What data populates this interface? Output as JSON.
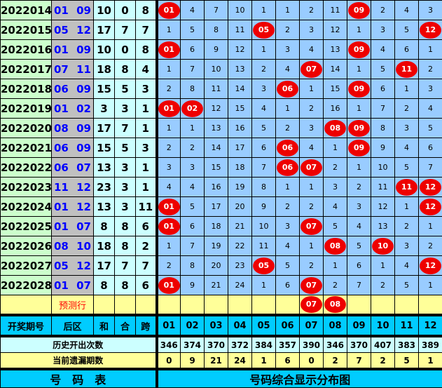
{
  "rows": [
    {
      "period": "2022014",
      "back": "01 09",
      "sum": "10",
      "he": "0",
      "kua": "8",
      "cells": [
        "01",
        4,
        7,
        10,
        1,
        1,
        2,
        11,
        "09",
        2,
        4,
        3
      ]
    },
    {
      "period": "2022015",
      "back": "05 12",
      "sum": "17",
      "he": "7",
      "kua": "7",
      "cells": [
        1,
        5,
        8,
        11,
        "05",
        2,
        3,
        12,
        1,
        3,
        5,
        "12"
      ]
    },
    {
      "period": "2022016",
      "back": "01 09",
      "sum": "10",
      "he": "0",
      "kua": "8",
      "cells": [
        "01",
        6,
        9,
        12,
        1,
        3,
        4,
        13,
        "09",
        4,
        6,
        1
      ]
    },
    {
      "period": "2022017",
      "back": "07 11",
      "sum": "18",
      "he": "8",
      "kua": "4",
      "cells": [
        1,
        7,
        10,
        13,
        2,
        4,
        "07",
        14,
        1,
        5,
        "11",
        2
      ]
    },
    {
      "period": "2022018",
      "back": "06 09",
      "sum": "15",
      "he": "5",
      "kua": "3",
      "cells": [
        2,
        8,
        11,
        14,
        3,
        "06",
        1,
        15,
        "09",
        6,
        1,
        3
      ]
    },
    {
      "period": "2022019",
      "back": "01 02",
      "sum": "3",
      "he": "3",
      "kua": "1",
      "cells": [
        "01",
        "02",
        12,
        15,
        4,
        1,
        2,
        16,
        1,
        7,
        2,
        4
      ]
    },
    {
      "period": "2022020",
      "back": "08 09",
      "sum": "17",
      "he": "7",
      "kua": "1",
      "cells": [
        1,
        1,
        13,
        16,
        5,
        2,
        3,
        "08",
        "09",
        8,
        3,
        5
      ]
    },
    {
      "period": "2022021",
      "back": "06 09",
      "sum": "15",
      "he": "5",
      "kua": "3",
      "cells": [
        2,
        2,
        14,
        17,
        6,
        "06",
        4,
        1,
        "09",
        9,
        4,
        6
      ]
    },
    {
      "period": "2022022",
      "back": "06 07",
      "sum": "13",
      "he": "3",
      "kua": "1",
      "cells": [
        3,
        3,
        15,
        18,
        7,
        "06",
        "07",
        2,
        1,
        10,
        5,
        7
      ]
    },
    {
      "period": "2022023",
      "back": "11 12",
      "sum": "23",
      "he": "3",
      "kua": "1",
      "cells": [
        4,
        4,
        16,
        19,
        8,
        1,
        1,
        3,
        2,
        11,
        "11",
        "12"
      ]
    },
    {
      "period": "2022024",
      "back": "01 12",
      "sum": "13",
      "he": "3",
      "kua": "11",
      "cells": [
        "01",
        5,
        17,
        20,
        9,
        2,
        2,
        4,
        3,
        12,
        1,
        "12"
      ]
    },
    {
      "period": "2022025",
      "back": "01 07",
      "sum": "8",
      "he": "8",
      "kua": "6",
      "cells": [
        "01",
        6,
        18,
        21,
        10,
        3,
        "07",
        5,
        4,
        13,
        2,
        1
      ]
    },
    {
      "period": "2022026",
      "back": "08 10",
      "sum": "18",
      "he": "8",
      "kua": "2",
      "cells": [
        1,
        7,
        19,
        22,
        11,
        4,
        1,
        "08",
        5,
        "10",
        3,
        2
      ]
    },
    {
      "period": "2022027",
      "back": "05 12",
      "sum": "17",
      "he": "7",
      "kua": "7",
      "cells": [
        2,
        8,
        20,
        23,
        "05",
        5,
        2,
        1,
        6,
        1,
        4,
        "12"
      ]
    },
    {
      "period": "2022028",
      "back": "01 07",
      "sum": "8",
      "he": "8",
      "kua": "6",
      "cells": [
        "01",
        9,
        21,
        24,
        1,
        6,
        "07",
        2,
        7,
        2,
        5,
        1
      ]
    }
  ],
  "prediction": {
    "label": "预测行",
    "cells": [
      "",
      "",
      "",
      "",
      "",
      "",
      "07",
      "08",
      "",
      "",
      "",
      ""
    ]
  },
  "header": {
    "period": "开奖期号",
    "back": "后区",
    "sum": "和",
    "he": "合",
    "kua": "跨",
    "numbers": [
      "01",
      "02",
      "03",
      "04",
      "05",
      "06",
      "07",
      "08",
      "09",
      "10",
      "11",
      "12"
    ]
  },
  "history": {
    "label": "历史开出次数",
    "values": [
      "346",
      "374",
      "370",
      "372",
      "384",
      "357",
      "390",
      "346",
      "370",
      "407",
      "383",
      "389"
    ]
  },
  "omission": {
    "label": "当前遗漏期数",
    "values": [
      "0",
      "9",
      "21",
      "24",
      "1",
      "6",
      "0",
      "2",
      "7",
      "2",
      "5",
      "1"
    ]
  },
  "footer": {
    "left": "号　码　表",
    "right": "号码综合显示分布图"
  },
  "colors": {
    "ball": "#ee0000",
    "number_area": "#99ccff",
    "header": "#00ccff",
    "period": "#ccffcc",
    "back": "#c0c0c0",
    "back_text": "#0000ff",
    "prediction": "#ffff99"
  }
}
